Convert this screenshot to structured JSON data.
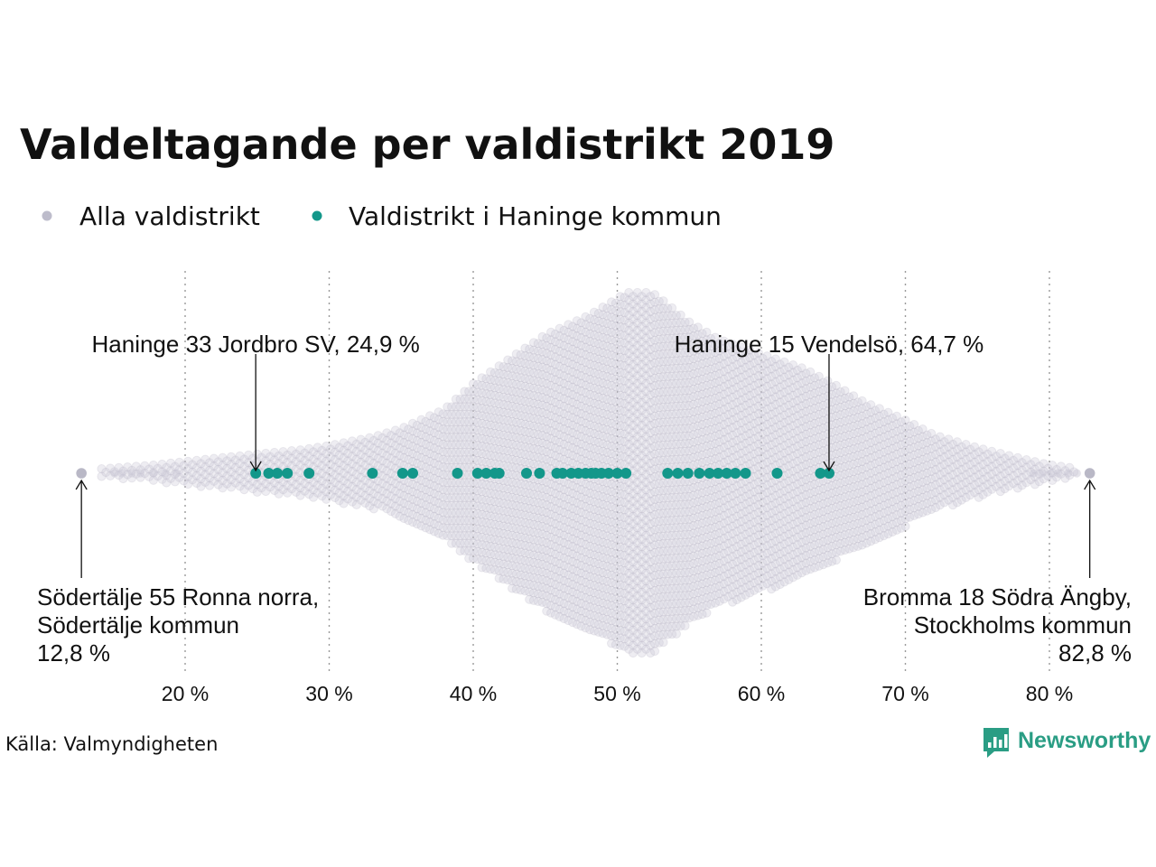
{
  "header": {
    "title": "Valdeltagande per valdistrikt 2019"
  },
  "legend": {
    "items": [
      {
        "label": "Alla valdistrikt",
        "color": "#bdbccb"
      },
      {
        "label": "Valdistrikt i Haninge kommun",
        "color": "#13978a"
      }
    ]
  },
  "footer": {
    "source": "Källa: Valmyndigheten",
    "brand": "Newsworthy"
  },
  "colors": {
    "all": "#c9c8d6",
    "all_stroke": "#b6b5c4",
    "haninge": "#13978a",
    "brand": "#2a9d84"
  },
  "annotations": [
    {
      "id": "min",
      "lines": [
        "Södertälje 55 Ronna norra,",
        "Södertälje kommun",
        "12,8 %"
      ],
      "value": 12.8,
      "align": "left"
    },
    {
      "id": "max",
      "lines": [
        "Bromma 18 Södra Ängby,",
        "Stockholms kommun",
        "82,8 %"
      ],
      "value": 82.8,
      "align": "right"
    },
    {
      "id": "haninge-min",
      "lines": [
        "Haninge 33 Jordbro SV, 24,9 %"
      ],
      "value": 24.9,
      "align": "center"
    },
    {
      "id": "haninge-max",
      "lines": [
        "Haninge 15 Vendelsö, 64,7 %"
      ],
      "value": 64.7,
      "align": "center"
    }
  ],
  "chart_data": {
    "type": "scatter",
    "subtype": "beeswarm",
    "title": "Valdeltagande per valdistrikt 2019",
    "xlabel": "",
    "ylabel": "",
    "xlim": [
      13,
      83
    ],
    "x_ticks": [
      20,
      30,
      40,
      50,
      60,
      70,
      80
    ],
    "x_tick_labels": [
      "20 %",
      "30 %",
      "40 %",
      "50 %",
      "60 %",
      "70 %",
      "80 %"
    ],
    "grid": "vertical dotted",
    "legend_position": "top-left",
    "series": [
      {
        "name": "Alla valdistrikt",
        "distribution_note_min": 12.8,
        "distribution_note_max": 82.8,
        "x": [
          12.8,
          15.1,
          15.6,
          16.3,
          16.9,
          17.8,
          18.6,
          19.4,
          82.8,
          81.9,
          81.3,
          80.6,
          80.1,
          79.5,
          78.9
        ],
        "density_profile": {
          "x": [
            12.8,
            15,
            18,
            20,
            22,
            25,
            28,
            30,
            33,
            35,
            38,
            40,
            43,
            45,
            48,
            50,
            51.5,
            53,
            55,
            57,
            60,
            63,
            65,
            67,
            70,
            72,
            75,
            78,
            80,
            82.8
          ],
          "count": [
            1,
            3,
            6,
            9,
            12,
            16,
            20,
            24,
            32,
            40,
            58,
            82,
            110,
            128,
            146,
            162,
            176,
            162,
            140,
            124,
            110,
            96,
            82,
            66,
            48,
            34,
            22,
            12,
            6,
            1
          ]
        }
      },
      {
        "name": "Valdistrikt i Haninge kommun",
        "x": [
          24.9,
          25.8,
          26.4,
          27.1,
          28.6,
          33.0,
          35.1,
          35.8,
          38.9,
          40.3,
          40.9,
          41.5,
          41.8,
          43.7,
          44.6,
          45.8,
          46.2,
          46.8,
          47.3,
          47.8,
          48.2,
          48.5,
          48.9,
          49.4,
          50.0,
          50.6,
          53.5,
          54.2,
          54.9,
          55.7,
          56.4,
          57.0,
          57.6,
          58.2,
          58.9,
          61.1,
          64.1,
          64.7
        ]
      }
    ]
  }
}
